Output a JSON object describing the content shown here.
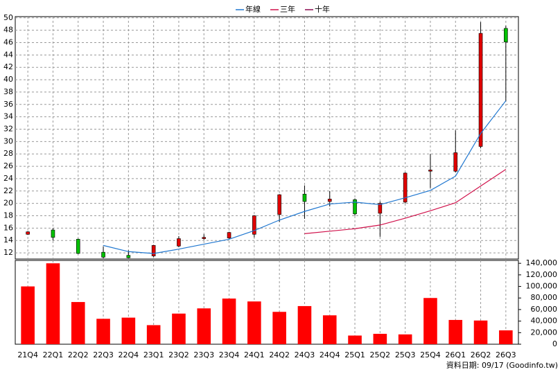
{
  "chart_data": {
    "type": "candlestick",
    "categories": [
      "21Q4",
      "22Q1",
      "22Q2",
      "22Q3",
      "22Q4",
      "23Q1",
      "23Q2",
      "23Q3",
      "23Q4",
      "24Q1",
      "24Q2",
      "24Q3",
      "24Q4",
      "25Q1",
      "25Q2",
      "25Q3",
      "25Q4",
      "26Q1",
      "26Q2",
      "26Q3"
    ],
    "open": [
      15.0,
      15.7,
      14.2,
      12.1,
      11.6,
      11.5,
      13.1,
      14.3,
      14.4,
      15.0,
      18.2,
      21.5,
      20.3,
      20.6,
      18.4,
      20.2,
      25.2,
      25.2,
      29.2,
      48.3
    ],
    "high": [
      15.5,
      16.0,
      14.3,
      13.0,
      12.4,
      13.3,
      14.7,
      15.0,
      15.4,
      18.1,
      21.5,
      22.9,
      22.0,
      20.8,
      20.3,
      25.0,
      28.0,
      31.8,
      49.3,
      48.7
    ],
    "low": [
      14.9,
      14.0,
      11.8,
      11.1,
      11.1,
      11.3,
      12.9,
      14.1,
      14.2,
      14.5,
      17.0,
      17.5,
      19.5,
      18.0,
      14.6,
      20.0,
      22.5,
      25.0,
      28.9,
      36.5
    ],
    "close": [
      15.4,
      14.5,
      11.9,
      11.3,
      11.2,
      13.2,
      14.3,
      14.5,
      15.3,
      18.0,
      21.4,
      20.3,
      20.7,
      18.3,
      20.0,
      24.9,
      25.4,
      28.2,
      47.5,
      46.1
    ],
    "up_color": "#e00000",
    "down_color": "#00c000",
    "ylim": [
      11,
      50.2
    ],
    "yticks": [
      12,
      14,
      16,
      18,
      20,
      22,
      24,
      26,
      28,
      30,
      32,
      34,
      36,
      38,
      40,
      42,
      44,
      46,
      48,
      50
    ],
    "grid": true,
    "lines": [
      {
        "name": "年線",
        "color": "#1f77d0",
        "values": [
          null,
          null,
          null,
          13.2,
          12.2,
          11.9,
          12.6,
          13.4,
          14.2,
          15.6,
          17.3,
          18.7,
          19.9,
          20.2,
          19.8,
          20.9,
          22.1,
          24.4,
          31.3,
          36.6
        ]
      },
      {
        "name": "三年",
        "color": "#d0104a",
        "values": [
          null,
          null,
          null,
          null,
          null,
          null,
          null,
          null,
          null,
          null,
          null,
          15.1,
          15.5,
          15.9,
          16.5,
          17.6,
          18.8,
          20.1,
          22.8,
          25.5
        ]
      },
      {
        "name": "十年",
        "color": "#8b0a50",
        "values": [
          null,
          null,
          null,
          null,
          null,
          null,
          null,
          null,
          null,
          null,
          null,
          null,
          null,
          null,
          null,
          null,
          null,
          null,
          null,
          null
        ]
      }
    ],
    "volume": {
      "color": "#ff0000",
      "values": [
        100000,
        140000,
        73000,
        44000,
        46000,
        33000,
        53000,
        62000,
        79000,
        74000,
        56000,
        66000,
        50000,
        15000,
        18000,
        17000,
        80000,
        42000,
        41000,
        24000
      ],
      "ylim": [
        0,
        145000
      ],
      "yticks": [
        0,
        {
          "value": 20000,
          "label": "20,000"
        },
        {
          "value": 40000,
          "label": "40,000"
        },
        {
          "value": 60000,
          "label": "60,000"
        },
        {
          "value": 80000,
          "label": "80,000"
        },
        {
          "value": 100000,
          "label": "100,000"
        },
        {
          "value": 120000,
          "label": "120,000"
        },
        {
          "value": 140000,
          "label": "140,000"
        }
      ]
    },
    "note": "資料日期: 09/17 (Goodinfo.tw)"
  }
}
